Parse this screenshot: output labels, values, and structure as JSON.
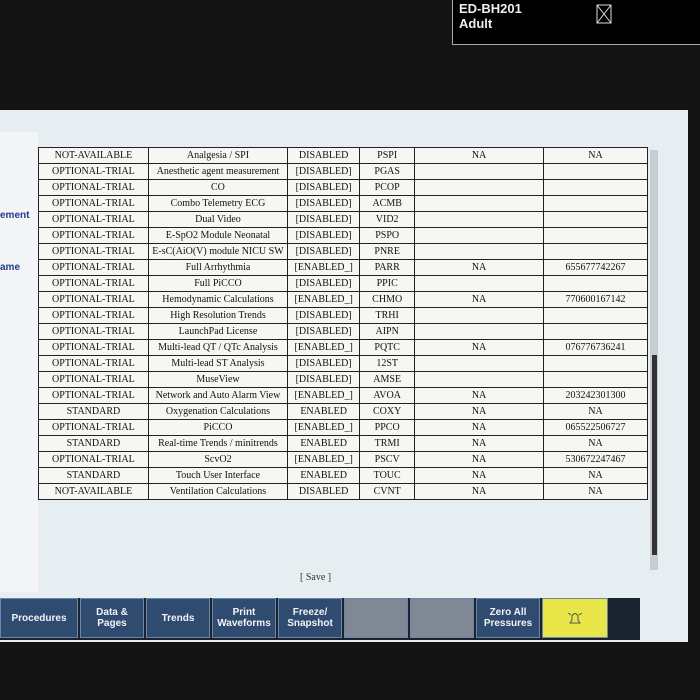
{
  "header": {
    "device": "ED-BH201",
    "patient": "Adult"
  },
  "side_labels": [
    "ement",
    "ame"
  ],
  "table": {
    "rows": [
      [
        "NOT-AVAILABLE",
        "Analgesia / SPI",
        "DISABLED",
        "PSPI",
        "NA",
        "NA"
      ],
      [
        "OPTIONAL-TRIAL",
        "Anesthetic agent measurement",
        "[DISABLED]",
        "PGAS"
      ],
      [
        "OPTIONAL-TRIAL",
        "CO",
        "[DISABLED]",
        "PCOP"
      ],
      [
        "OPTIONAL-TRIAL",
        "Combo Telemetry ECG",
        "[DISABLED]",
        "ACMB"
      ],
      [
        "OPTIONAL-TRIAL",
        "Dual Video",
        "[DISABLED]",
        "VID2"
      ],
      [
        "OPTIONAL-TRIAL",
        "E-SpO2 Module Neonatal",
        "[DISABLED]",
        "PSPO"
      ],
      [
        "OPTIONAL-TRIAL",
        "E-sC(AiO(V) module NICU SW",
        "[DISABLED]",
        "PNRE"
      ],
      [
        "OPTIONAL-TRIAL",
        "Full Arrhythmia",
        "[ENABLED_]",
        "PARR",
        "NA",
        "655677742267"
      ],
      [
        "OPTIONAL-TRIAL",
        "Full PiCCO",
        "[DISABLED]",
        "PPIC"
      ],
      [
        "OPTIONAL-TRIAL",
        "Hemodynamic Calculations",
        "[ENABLED_]",
        "CHMO",
        "NA",
        "770600167142"
      ],
      [
        "OPTIONAL-TRIAL",
        "High Resolution Trends",
        "[DISABLED]",
        "TRHI"
      ],
      [
        "OPTIONAL-TRIAL",
        "LaunchPad License",
        "[DISABLED]",
        "AIPN"
      ],
      [
        "OPTIONAL-TRIAL",
        "Multi-lead QT / QTc Analysis",
        "[ENABLED_]",
        "PQTC",
        "NA",
        "076776736241"
      ],
      [
        "OPTIONAL-TRIAL",
        "Multi-lead ST Analysis",
        "[DISABLED]",
        "12ST"
      ],
      [
        "OPTIONAL-TRIAL",
        "MuseView",
        "[DISABLED]",
        "AMSE"
      ],
      [
        "OPTIONAL-TRIAL",
        "Network and Auto Alarm View",
        "[ENABLED_]",
        "AVOA",
        "NA",
        "203242301300"
      ],
      [
        "STANDARD",
        "Oxygenation Calculations",
        "ENABLED",
        "COXY",
        "NA",
        "NA"
      ],
      [
        "OPTIONAL-TRIAL",
        "PiCCO",
        "[ENABLED_]",
        "PPCO",
        "NA",
        "065522506727"
      ],
      [
        "STANDARD",
        "Real-time Trends / minitrends",
        "ENABLED",
        "TRMI",
        "NA",
        "NA"
      ],
      [
        "OPTIONAL-TRIAL",
        "ScvO2",
        "[ENABLED_]",
        "PSCV",
        "NA",
        "530672247467"
      ],
      [
        "STANDARD",
        "Touch User Interface",
        "ENABLED",
        "TOUC",
        "NA",
        "NA"
      ],
      [
        "NOT-AVAILABLE",
        "Ventilation Calculations",
        "DISABLED",
        "CVNT",
        "NA",
        "NA"
      ]
    ]
  },
  "save": "[ Save ]",
  "buttons": [
    "Procedures",
    "Data & Pages",
    "Trends",
    "Print Waveforms",
    "Freeze/ Snapshot",
    "Zero All Pressures"
  ]
}
